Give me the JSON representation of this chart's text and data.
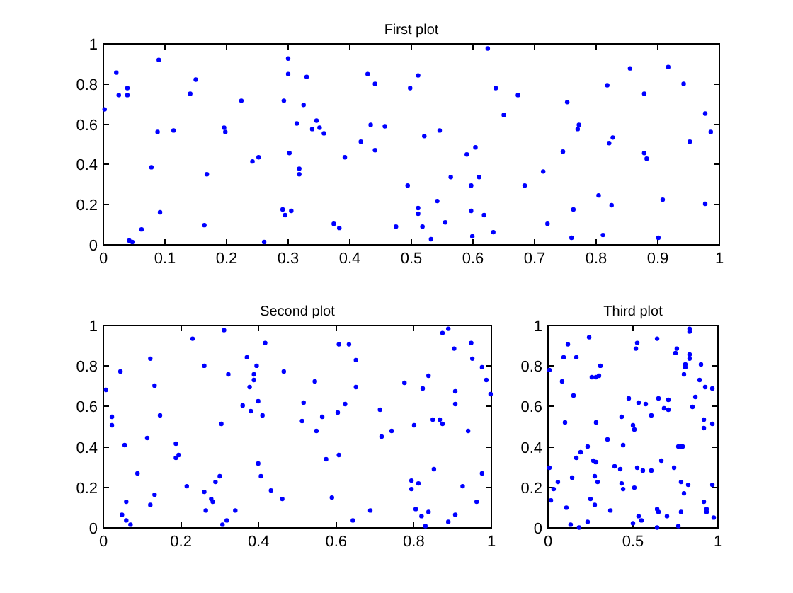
{
  "chart_data": [
    {
      "type": "scatter",
      "title": "First plot",
      "marker": "circle",
      "color": "#0000ff",
      "xlim": [
        0,
        1
      ],
      "ylim": [
        0,
        1
      ],
      "xticks": [
        0,
        0.1,
        0.2,
        0.3,
        0.4,
        0.5,
        0.6,
        0.7,
        0.8,
        0.9,
        1
      ],
      "yticks": [
        0,
        0.2,
        0.4,
        0.6,
        0.8,
        1
      ],
      "x": [
        0.002,
        0.021,
        0.025,
        0.039,
        0.039,
        0.042,
        0.047,
        0.062,
        0.078,
        0.088,
        0.09,
        0.092,
        0.114,
        0.141,
        0.15,
        0.168,
        0.164,
        0.196,
        0.198,
        0.224,
        0.242,
        0.252,
        0.261,
        0.291,
        0.293,
        0.295,
        0.3,
        0.3,
        0.302,
        0.305,
        0.314,
        0.318,
        0.318,
        0.325,
        0.33,
        0.339,
        0.346,
        0.351,
        0.358,
        0.374,
        0.383,
        0.392,
        0.418,
        0.429,
        0.434,
        0.441,
        0.441,
        0.457,
        0.475,
        0.494,
        0.498,
        0.624,
        0.511,
        0.637,
        0.673,
        0.65,
        0.521,
        0.546,
        0.59,
        0.604,
        0.564,
        0.61,
        0.597,
        0.684,
        0.542,
        0.511,
        0.511,
        0.597,
        0.618,
        0.555,
        0.518,
        0.532,
        0.599,
        0.633,
        0.714,
        0.721,
        0.746,
        0.753,
        0.76,
        0.763,
        0.77,
        0.772,
        0.804,
        0.811,
        0.818,
        0.821,
        0.827,
        0.825,
        0.855,
        0.878,
        0.878,
        0.882,
        0.901,
        0.908,
        0.917,
        0.942,
        0.952,
        0.977,
        0.977,
        0.986
      ],
      "values": [
        0.674,
        0.857,
        0.745,
        0.78,
        0.745,
        0.021,
        0.014,
        0.077,
        0.386,
        0.562,
        0.92,
        0.162,
        0.569,
        0.752,
        0.822,
        0.351,
        0.098,
        0.583,
        0.562,
        0.717,
        0.415,
        0.436,
        0.014,
        0.176,
        0.717,
        0.148,
        0.927,
        0.85,
        0.457,
        0.169,
        0.604,
        0.379,
        0.351,
        0.696,
        0.836,
        0.576,
        0.618,
        0.583,
        0.555,
        0.105,
        0.084,
        0.436,
        0.513,
        0.85,
        0.597,
        0.801,
        0.471,
        0.59,
        0.091,
        0.295,
        0.78,
        0.977,
        0.843,
        0.78,
        0.745,
        0.646,
        0.541,
        0.569,
        0.45,
        0.485,
        0.337,
        0.337,
        0.295,
        0.295,
        0.218,
        0.183,
        0.155,
        0.169,
        0.148,
        0.112,
        0.091,
        0.028,
        0.042,
        0.063,
        0.365,
        0.105,
        0.464,
        0.71,
        0.035,
        0.176,
        0.576,
        0.597,
        0.246,
        0.049,
        0.794,
        0.506,
        0.534,
        0.197,
        0.878,
        0.752,
        0.457,
        0.429,
        0.035,
        0.225,
        0.885,
        0.801,
        0.513,
        0.653,
        0.204,
        0.562
      ]
    },
    {
      "type": "scatter",
      "title": "Second plot",
      "marker": "circle",
      "color": "#0000ff",
      "xlim": [
        0,
        1
      ],
      "ylim": [
        0,
        1
      ],
      "xticks": [
        0,
        0.2,
        0.4,
        0.6,
        0.8,
        1
      ],
      "yticks": [
        0,
        0.2,
        0.4,
        0.6,
        0.8,
        1
      ],
      "x": [
        0.007,
        0.022,
        0.022,
        0.044,
        0.055,
        0.048,
        0.059,
        0.059,
        0.07,
        0.088,
        0.113,
        0.121,
        0.121,
        0.132,
        0.132,
        0.146,
        0.187,
        0.187,
        0.194,
        0.215,
        0.23,
        0.26,
        0.26,
        0.264,
        0.278,
        0.282,
        0.289,
        0.3,
        0.304,
        0.307,
        0.311,
        0.318,
        0.322,
        0.34,
        0.359,
        0.37,
        0.377,
        0.38,
        0.388,
        0.388,
        0.395,
        0.399,
        0.399,
        0.406,
        0.41,
        0.417,
        0.432,
        0.461,
        0.465,
        0.607,
        0.633,
        0.651,
        0.545,
        0.651,
        0.516,
        0.623,
        0.604,
        0.512,
        0.564,
        0.549,
        0.574,
        0.607,
        0.713,
        0.717,
        0.743,
        0.589,
        0.688,
        0.643,
        0.776,
        0.801,
        0.823,
        0.838,
        0.849,
        0.867,
        0.874,
        0.852,
        0.794,
        0.812,
        0.794,
        0.805,
        0.82,
        0.838,
        0.83,
        0.874,
        0.889,
        0.904,
        0.907,
        0.907,
        0.889,
        0.907,
        0.94,
        0.926,
        0.948,
        0.951,
        0.962,
        0.976,
        0.976,
        0.987,
        0.998
      ],
      "values": [
        0.682,
        0.549,
        0.507,
        0.773,
        0.409,
        0.065,
        0.129,
        0.037,
        0.016,
        0.269,
        0.444,
        0.836,
        0.114,
        0.703,
        0.164,
        0.556,
        0.416,
        0.346,
        0.36,
        0.206,
        0.935,
        0.801,
        0.178,
        0.086,
        0.143,
        0.129,
        0.227,
        0.255,
        0.514,
        0.016,
        0.977,
        0.037,
        0.759,
        0.086,
        0.605,
        0.843,
        0.696,
        0.577,
        0.759,
        0.731,
        0.801,
        0.626,
        0.318,
        0.255,
        0.556,
        0.914,
        0.185,
        0.143,
        0.773,
        0.907,
        0.907,
        0.829,
        0.724,
        0.696,
        0.619,
        0.612,
        0.57,
        0.528,
        0.549,
        0.479,
        0.339,
        0.36,
        0.584,
        0.451,
        0.479,
        0.15,
        0.086,
        0.037,
        0.717,
        0.507,
        0.689,
        0.752,
        0.535,
        0.535,
        0.514,
        0.29,
        0.234,
        0.22,
        0.192,
        0.093,
        0.058,
        0.079,
        0.009,
        0.963,
        0.984,
        0.886,
        0.675,
        0.612,
        0.03,
        0.065,
        0.479,
        0.206,
        0.914,
        0.836,
        0.129,
        0.794,
        0.269,
        0.731,
        0.661
      ]
    },
    {
      "type": "scatter",
      "title": "Third plot",
      "marker": "circle",
      "color": "#0000ff",
      "xlim": [
        0,
        1
      ],
      "ylim": [
        0,
        1
      ],
      "xticks": [
        0,
        0.5,
        1
      ],
      "yticks": [
        0,
        0.2,
        0.4,
        0.6,
        0.8,
        1
      ],
      "x": [
        0.008,
        0.008,
        0.017,
        0.033,
        0.058,
        0.083,
        0.092,
        0.1,
        0.108,
        0.117,
        0.133,
        0.142,
        0.15,
        0.167,
        0.167,
        0.192,
        0.183,
        0.233,
        0.242,
        0.233,
        0.25,
        0.258,
        0.267,
        0.275,
        0.283,
        0.283,
        0.283,
        0.275,
        0.292,
        0.3,
        0.308,
        0.35,
        0.367,
        0.392,
        0.425,
        0.433,
        0.433,
        0.442,
        0.442,
        0.475,
        0.5,
        0.508,
        0.5,
        0.508,
        0.517,
        0.525,
        0.525,
        0.533,
        0.533,
        0.55,
        0.558,
        0.575,
        0.608,
        0.608,
        0.642,
        0.65,
        0.642,
        0.65,
        0.642,
        0.667,
        0.683,
        0.708,
        0.708,
        0.7,
        0.742,
        0.75,
        0.758,
        0.767,
        0.767,
        0.783,
        0.792,
        0.783,
        0.783,
        0.8,
        0.8,
        0.808,
        0.808,
        0.825,
        0.833,
        0.833,
        0.833,
        0.833,
        0.85,
        0.867,
        0.892,
        0.9,
        0.917,
        0.917,
        0.925,
        0.917,
        0.933,
        0.933,
        0.967,
        0.967,
        0.967,
        0.975
      ],
      "values": [
        0.78,
        0.297,
        0.136,
        0.192,
        0.227,
        0.724,
        0.843,
        0.521,
        0.1,
        0.907,
        0.016,
        0.248,
        0.654,
        0.843,
        0.346,
        0.374,
        0.002,
        0.402,
        0.942,
        0.03,
        0.143,
        0.745,
        0.332,
        0.255,
        0.325,
        0.521,
        0.745,
        0.114,
        0.227,
        0.752,
        0.801,
        0.437,
        0.086,
        0.304,
        0.29,
        0.549,
        0.22,
        0.192,
        0.409,
        0.64,
        0.507,
        0.486,
        0.023,
        0.199,
        0.886,
        0.914,
        0.297,
        0.619,
        0.058,
        0.037,
        0.283,
        0.612,
        0.283,
        0.556,
        0.935,
        0.64,
        0.093,
        0.079,
        0.002,
        0.332,
        0.591,
        0.633,
        0.584,
        0.058,
        0.297,
        0.864,
        0.886,
        0.402,
        0.009,
        0.402,
        0.402,
        0.227,
        0.079,
        0.759,
        0.171,
        0.808,
        0.794,
        0.213,
        0.857,
        0.836,
        0.984,
        0.97,
        0.598,
        0.647,
        0.731,
        0.808,
        0.535,
        0.493,
        0.696,
        0.129,
        0.079,
        0.093,
        0.689,
        0.514,
        0.213,
        0.051
      ]
    }
  ]
}
